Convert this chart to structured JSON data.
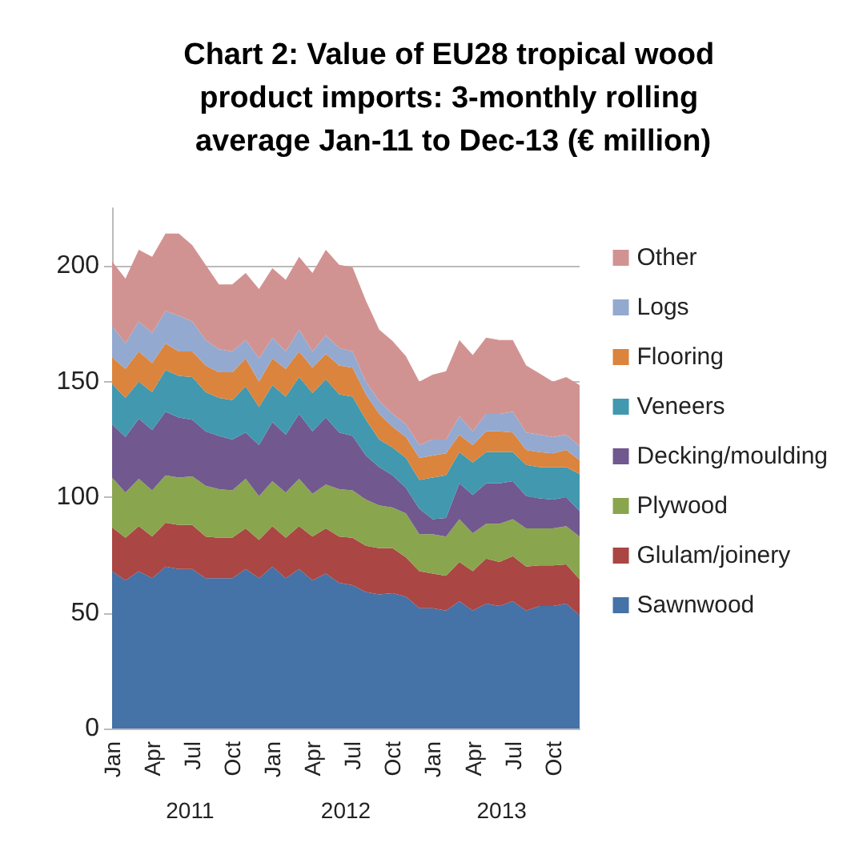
{
  "chart_data": {
    "type": "area",
    "stacked": true,
    "title": "Chart 2: Value of EU28 tropical wood product imports: 3-monthly rolling average Jan-11 to Dec-13 (€ million)",
    "categories": [
      "Jan",
      null,
      null,
      "Apr",
      null,
      null,
      "Jul",
      null,
      null,
      "Oct",
      null,
      null,
      "Jan",
      null,
      null,
      "Apr",
      null,
      null,
      "Jul",
      null,
      null,
      "Oct",
      null,
      null,
      "Jan",
      null,
      null,
      "Apr",
      null,
      null,
      "Jul",
      null,
      null,
      "Oct",
      null,
      null
    ],
    "annotations": [
      "2011",
      "2012",
      "2013"
    ],
    "series": [
      {
        "name": "Sawnwood",
        "color": "#4572a7",
        "values": [
          68,
          64,
          68,
          65,
          70,
          69,
          69,
          65,
          65,
          65,
          69,
          65,
          70,
          65,
          69,
          64,
          67,
          63,
          62,
          59,
          58,
          58.5,
          57,
          52,
          52,
          51,
          55,
          51,
          54,
          53,
          55,
          51,
          53,
          53,
          54,
          49
        ]
      },
      {
        "name": "Glulam/joinery",
        "color": "#aa4643",
        "values": [
          19,
          18.5,
          19.5,
          18,
          19,
          19,
          19,
          18,
          17.5,
          17.5,
          17.5,
          16.5,
          17.5,
          17.5,
          18.5,
          19,
          19.5,
          20,
          20.5,
          20,
          20,
          19.5,
          17,
          16,
          15,
          15,
          17,
          17,
          19.5,
          19,
          19.5,
          19,
          17.5,
          17.5,
          17,
          15.5
        ]
      },
      {
        "name": "Plywood",
        "color": "#89a54e",
        "values": [
          21.5,
          19.5,
          20.5,
          20,
          20.5,
          20.5,
          21,
          22,
          21,
          20.5,
          21.5,
          19,
          19.5,
          19.5,
          20.5,
          18.5,
          19,
          20.5,
          20.5,
          20,
          18.5,
          17.5,
          19,
          16,
          17,
          17,
          18.5,
          16.5,
          15,
          16.5,
          16,
          16.5,
          16,
          16,
          16.5,
          18.5
        ]
      },
      {
        "name": "Decking/moulding",
        "color": "#71588f",
        "values": [
          23,
          24,
          26,
          26,
          27.5,
          26,
          24.5,
          23.5,
          23,
          22,
          20,
          22,
          25.5,
          25,
          28,
          27,
          29,
          24.5,
          23.5,
          19,
          16.5,
          14,
          11,
          11,
          6.5,
          8,
          15.5,
          16.5,
          17.5,
          17.5,
          16.5,
          14,
          13,
          12.5,
          12.5,
          11
        ]
      },
      {
        "name": "Veneers",
        "color": "#4198af",
        "values": [
          17.5,
          17,
          16,
          16.5,
          18,
          18,
          18.5,
          17,
          16.5,
          17,
          20,
          16.5,
          16,
          16.5,
          16,
          16.5,
          16.5,
          16.5,
          17,
          15.5,
          12,
          12,
          13,
          12.5,
          18,
          18.5,
          13.5,
          14,
          13.5,
          13.5,
          12.5,
          13.5,
          13.5,
          14,
          13,
          16
        ]
      },
      {
        "name": "Flooring",
        "color": "#db843d",
        "values": [
          11.5,
          12.5,
          13,
          12.5,
          11.5,
          10.5,
          11,
          11.5,
          11,
          12,
          12,
          11,
          11.5,
          12,
          11,
          11,
          11,
          12.5,
          12.5,
          11,
          11,
          9,
          9,
          9.5,
          9.5,
          9.5,
          7.5,
          7.5,
          9,
          9,
          8.5,
          6.5,
          6.5,
          6,
          7.5,
          6
        ]
      },
      {
        "name": "Logs",
        "color": "#93a9cf",
        "values": [
          13.5,
          11,
          13,
          13,
          14,
          15.5,
          13,
          11,
          10,
          9,
          8,
          10,
          9,
          7.5,
          9.5,
          7,
          8,
          7.5,
          7,
          5.5,
          5.5,
          5.5,
          5.5,
          5.5,
          7,
          6,
          8,
          6,
          7.5,
          7.5,
          9,
          7.5,
          7.5,
          7,
          6.5,
          6
        ]
      },
      {
        "name": "Other",
        "color": "#d19392",
        "values": [
          28,
          28,
          31,
          33,
          33.5,
          35.5,
          33,
          32.5,
          28,
          29,
          29,
          30,
          30,
          31,
          31.5,
          34,
          37,
          36,
          36.5,
          35,
          31,
          31.5,
          29.5,
          27.5,
          28,
          29.5,
          33,
          33,
          33,
          32,
          31,
          29,
          26.5,
          24,
          25,
          26.5
        ]
      }
    ],
    "ylim": [
      0,
      225
    ],
    "yticks": [
      0,
      50,
      100,
      150,
      200
    ],
    "grid": "y",
    "legend": "right"
  }
}
